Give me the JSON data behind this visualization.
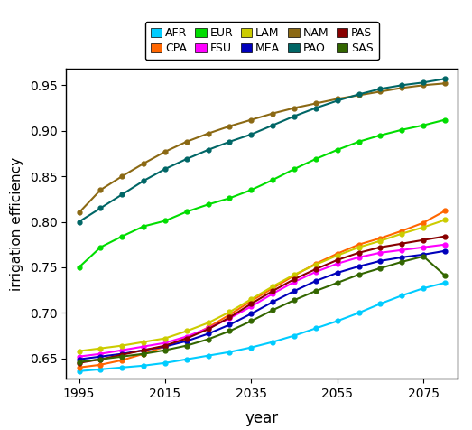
{
  "years": [
    1995,
    2000,
    2005,
    2010,
    2015,
    2020,
    2025,
    2030,
    2035,
    2040,
    2045,
    2050,
    2055,
    2060,
    2065,
    2070,
    2075,
    2080
  ],
  "regions": {
    "AFR": {
      "color": "#00CCFF",
      "values": [
        0.636,
        0.638,
        0.64,
        0.642,
        0.645,
        0.649,
        0.653,
        0.657,
        0.662,
        0.668,
        0.675,
        0.683,
        0.691,
        0.7,
        0.71,
        0.719,
        0.727,
        0.733
      ]
    },
    "CPA": {
      "color": "#FF6600",
      "values": [
        0.64,
        0.643,
        0.648,
        0.655,
        0.663,
        0.672,
        0.684,
        0.698,
        0.713,
        0.727,
        0.741,
        0.754,
        0.765,
        0.775,
        0.782,
        0.79,
        0.799,
        0.812
      ]
    },
    "EUR": {
      "color": "#00DD00",
      "values": [
        0.75,
        0.772,
        0.784,
        0.795,
        0.801,
        0.811,
        0.819,
        0.826,
        0.835,
        0.846,
        0.858,
        0.869,
        0.879,
        0.888,
        0.895,
        0.901,
        0.906,
        0.912
      ]
    },
    "FSU": {
      "color": "#FF00FF",
      "values": [
        0.652,
        0.655,
        0.659,
        0.663,
        0.667,
        0.674,
        0.683,
        0.694,
        0.707,
        0.721,
        0.734,
        0.745,
        0.754,
        0.761,
        0.766,
        0.769,
        0.772,
        0.775
      ]
    },
    "LAM": {
      "color": "#CCCC00",
      "values": [
        0.658,
        0.661,
        0.664,
        0.668,
        0.672,
        0.68,
        0.689,
        0.701,
        0.715,
        0.729,
        0.742,
        0.753,
        0.763,
        0.772,
        0.779,
        0.787,
        0.794,
        0.802
      ]
    },
    "MEA": {
      "color": "#0000BB",
      "values": [
        0.649,
        0.652,
        0.655,
        0.659,
        0.663,
        0.669,
        0.677,
        0.687,
        0.699,
        0.712,
        0.724,
        0.735,
        0.744,
        0.751,
        0.757,
        0.761,
        0.764,
        0.768
      ]
    },
    "NAM": {
      "color": "#8B6914",
      "values": [
        0.81,
        0.835,
        0.85,
        0.864,
        0.877,
        0.888,
        0.897,
        0.905,
        0.912,
        0.919,
        0.925,
        0.93,
        0.935,
        0.939,
        0.943,
        0.947,
        0.95,
        0.952
      ]
    },
    "PAO": {
      "color": "#006666",
      "values": [
        0.8,
        0.815,
        0.83,
        0.845,
        0.858,
        0.869,
        0.879,
        0.888,
        0.896,
        0.906,
        0.916,
        0.925,
        0.933,
        0.94,
        0.946,
        0.95,
        0.953,
        0.957
      ]
    },
    "PAS": {
      "color": "#880000",
      "values": [
        0.645,
        0.649,
        0.654,
        0.659,
        0.664,
        0.672,
        0.682,
        0.695,
        0.71,
        0.724,
        0.737,
        0.748,
        0.758,
        0.766,
        0.772,
        0.776,
        0.78,
        0.784
      ]
    },
    "SAS": {
      "color": "#336600",
      "values": [
        0.646,
        0.649,
        0.652,
        0.655,
        0.659,
        0.664,
        0.671,
        0.68,
        0.691,
        0.703,
        0.714,
        0.724,
        0.733,
        0.742,
        0.749,
        0.756,
        0.762,
        0.741
      ]
    }
  },
  "xlabel": "year",
  "ylabel": "irrigation efficiency",
  "ylim": [
    0.628,
    0.968
  ],
  "yticks": [
    0.65,
    0.7,
    0.75,
    0.8,
    0.85,
    0.9,
    0.95
  ],
  "xticks": [
    1995,
    2015,
    2035,
    2055,
    2075
  ],
  "legend_row1": [
    "AFR",
    "CPA",
    "EUR",
    "FSU",
    "LAM"
  ],
  "legend_row2": [
    "MEA",
    "NAM",
    "PAO",
    "PAS",
    "SAS"
  ],
  "background_color": "#FFFFFF"
}
